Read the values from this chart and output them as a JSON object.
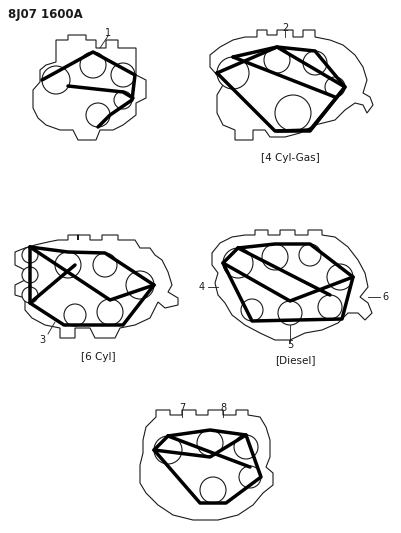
{
  "title": "8J07 1600A",
  "background_color": "#ffffff",
  "line_color": "#1a1a1a",
  "belt_color": "#000000",
  "labels": {
    "top_left_num": "1",
    "top_right_num": "2",
    "top_right_caption": "4 Cyl-Gas",
    "mid_left_num": "3",
    "mid_left_caption": "6 Cyl",
    "mid_right_nums": [
      "4",
      "5",
      "6"
    ],
    "mid_right_caption": "Diesel",
    "bot_nums": [
      "7",
      "8"
    ]
  },
  "figsize": [
    4.02,
    5.33
  ],
  "dpi": 100
}
